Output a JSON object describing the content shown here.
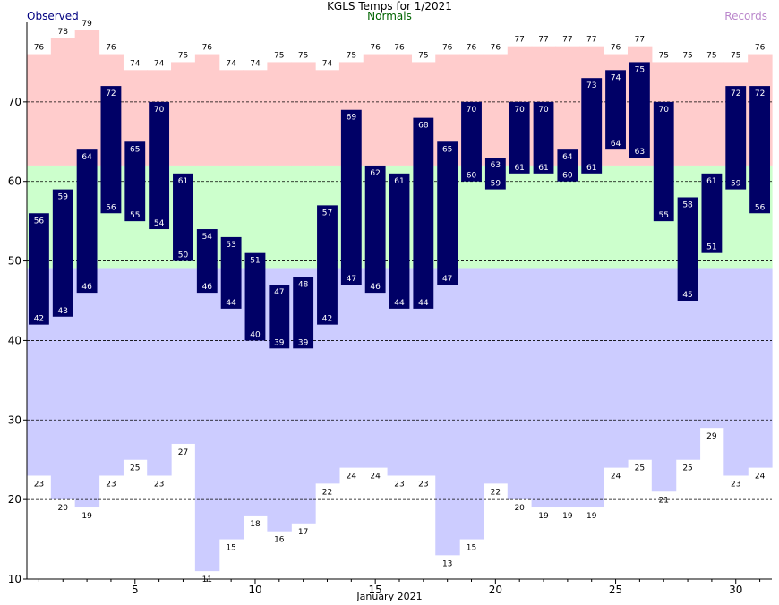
{
  "chart_data": {
    "type": "bar",
    "title": "KGLS Temps for 1/2021",
    "xlabel": "January 2021",
    "ylabel": "",
    "legend": {
      "observed": "Observed",
      "normals": "Normals",
      "records": "Records",
      "placement": "top"
    },
    "ylim": [
      10,
      80
    ],
    "xlim": [
      1,
      31
    ],
    "y_ticks": [
      10,
      20,
      30,
      40,
      50,
      60,
      70
    ],
    "x_ticks": [
      5,
      10,
      15,
      20,
      25,
      30
    ],
    "grid": "dashed horizontal lines at 20, 30, 40, 50, 60, 70",
    "days": [
      1,
      2,
      3,
      4,
      5,
      6,
      7,
      8,
      9,
      10,
      11,
      12,
      13,
      14,
      15,
      16,
      17,
      18,
      19,
      20,
      21,
      22,
      23,
      24,
      25,
      26,
      27,
      28,
      29,
      30,
      31
    ],
    "series": [
      {
        "name": "Observed",
        "key": "obs_high",
        "values": [
          56,
          59,
          64,
          72,
          65,
          70,
          61,
          54,
          53,
          51,
          47,
          48,
          57,
          69,
          62,
          61,
          68,
          65,
          70,
          63,
          70,
          70,
          64,
          73,
          74,
          75,
          70,
          58,
          61,
          72,
          72
        ]
      },
      {
        "name": "Observed",
        "key": "obs_low",
        "values": [
          42,
          43,
          46,
          56,
          55,
          54,
          50,
          46,
          44,
          40,
          39,
          39,
          42,
          47,
          46,
          44,
          44,
          47,
          60,
          59,
          61,
          61,
          60,
          61,
          64,
          63,
          55,
          45,
          51,
          59,
          56
        ]
      },
      {
        "name": "Records",
        "key": "record_high",
        "values": [
          76,
          78,
          79,
          76,
          74,
          74,
          75,
          76,
          74,
          74,
          75,
          75,
          74,
          75,
          76,
          76,
          75,
          76,
          76,
          76,
          77,
          77,
          77,
          77,
          76,
          77,
          75,
          75,
          75,
          75,
          76
        ]
      },
      {
        "name": "Records",
        "key": "record_low",
        "values": [
          23,
          20,
          19,
          23,
          25,
          23,
          27,
          11,
          15,
          18,
          16,
          17,
          22,
          24,
          24,
          23,
          23,
          13,
          15,
          22,
          20,
          19,
          19,
          19,
          24,
          25,
          21,
          25,
          29,
          23,
          24
        ]
      },
      {
        "name": "Normals",
        "key": "normal_high",
        "values": [
          62,
          62,
          62,
          62,
          62,
          62,
          62,
          62,
          62,
          62,
          62,
          62,
          62,
          62,
          62,
          62,
          62,
          62,
          62,
          62,
          62,
          62,
          62,
          62,
          62,
          62,
          62,
          62,
          62,
          62,
          62
        ]
      },
      {
        "name": "Normals",
        "key": "normal_low",
        "values": [
          49,
          49,
          49,
          49,
          49,
          49,
          49,
          49,
          49,
          49,
          49,
          49,
          49,
          49,
          49,
          49,
          49,
          49,
          49,
          49,
          49,
          49,
          49,
          49,
          49,
          49,
          49,
          49,
          49,
          49,
          49
        ]
      }
    ],
    "colors": {
      "observed": "#000066",
      "observed_label": "#000080",
      "normals_label": "#006400",
      "records_label": "#bb88cc",
      "record_high_band": "#ffcccc",
      "normal_band": "#ccffcc",
      "record_low_band": "#ccccff",
      "value_text_on_bar": "#ffffff",
      "value_text": "#000000"
    }
  }
}
